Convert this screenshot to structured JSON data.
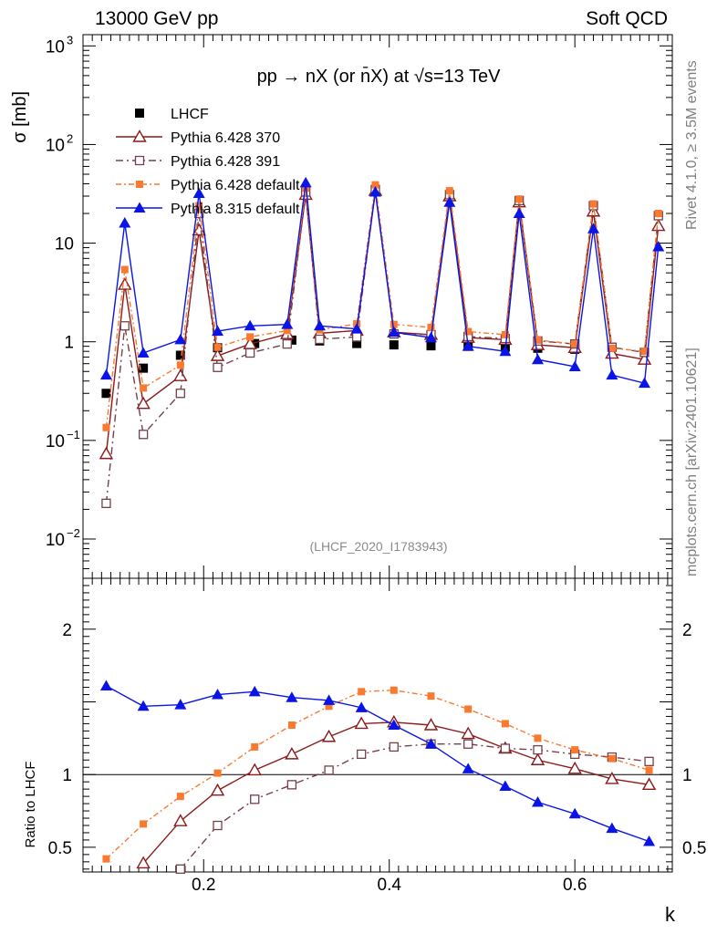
{
  "header": {
    "left": "13000 GeV pp",
    "right": "Soft QCD"
  },
  "side_labels": {
    "top": "Rivet 4.1.0, ≥ 3.5M events",
    "bottom": "mcplots.cern.ch [arXiv:2401.10621]"
  },
  "chart_data": {
    "type": "line",
    "title": "pp → nX (or n̄X) at √s=13 TeV",
    "analysis_tag": "(LHCF_2020_I1783943)",
    "xlabel": "k",
    "ylabel": "σ [mb]",
    "ratio_ylabel": "Ratio to LHCF",
    "top_yscale": "log",
    "top_ylim": [
      0.004,
      1300
    ],
    "ratio_ylim": [
      0.33,
      2.35
    ],
    "xlim": [
      0.07,
      0.705
    ],
    "x_ticks": [
      {
        "v": 0.2,
        "label": "0.2"
      },
      {
        "v": 0.4,
        "label": "0.4"
      },
      {
        "v": 0.6,
        "label": "0.6"
      }
    ],
    "top_y_ticks": [
      {
        "v": 0.01,
        "base": "10",
        "exp": "−2"
      },
      {
        "v": 0.1,
        "base": "10",
        "exp": "−1"
      },
      {
        "v": 1,
        "base": "1",
        "exp": ""
      },
      {
        "v": 10,
        "base": "10",
        "exp": ""
      },
      {
        "v": 100,
        "base": "10",
        "exp": "2"
      },
      {
        "v": 1000,
        "base": "10",
        "exp": "3"
      }
    ],
    "ratio_y_ticks": [
      {
        "v": 0.5,
        "label": "0.5"
      },
      {
        "v": 1,
        "label": "1"
      },
      {
        "v": 2,
        "label": "2"
      }
    ],
    "legend_position": "top-left",
    "top_series": [
      {
        "name": "LHCF",
        "color": "#000000",
        "marker": "filled-square",
        "line": "none",
        "x": [
          0.095,
          0.135,
          0.175,
          0.215,
          0.255,
          0.295,
          0.325,
          0.365,
          0.405,
          0.445,
          0.485,
          0.525,
          0.56,
          0.6
        ],
        "y": [
          0.3,
          0.54,
          0.73,
          0.87,
          0.96,
          1.04,
          1.02,
          0.96,
          0.93,
          0.91,
          0.9,
          0.88,
          0.86,
          0.84
        ]
      },
      {
        "name": "Pythia 6.428 370",
        "color": "#8b1a1a",
        "marker": "open-triangle",
        "line": "solid",
        "x": [
          0.095,
          0.115,
          0.135,
          0.175,
          0.195,
          0.215,
          0.25,
          0.29,
          0.31,
          0.325,
          0.365,
          0.385,
          0.405,
          0.445,
          0.465,
          0.485,
          0.525,
          0.54,
          0.56,
          0.6,
          0.62,
          0.64,
          0.675,
          0.69
        ],
        "y": [
          0.073,
          3.8,
          0.235,
          0.45,
          13.5,
          0.72,
          0.95,
          1.2,
          31,
          1.22,
          1.3,
          34,
          1.25,
          1.18,
          30,
          1.1,
          1.05,
          26,
          0.93,
          0.87,
          21,
          0.76,
          0.66,
          15
        ]
      },
      {
        "name": "Pythia 6.428 391",
        "color": "#74404a",
        "marker": "open-square",
        "line": "dash-dot",
        "x": [
          0.095,
          0.115,
          0.135,
          0.175,
          0.195,
          0.215,
          0.25,
          0.29,
          0.31,
          0.325,
          0.365,
          0.385,
          0.405,
          0.445,
          0.465,
          0.485,
          0.525,
          0.54,
          0.56,
          0.6,
          0.62,
          0.64,
          0.675,
          0.69
        ],
        "y": [
          0.023,
          1.45,
          0.115,
          0.3,
          20,
          0.55,
          0.77,
          0.95,
          33,
          1.06,
          1.12,
          35,
          1.2,
          1.18,
          31,
          1.13,
          1.08,
          27,
          1.02,
          0.95,
          24,
          0.88,
          0.78,
          19
        ]
      },
      {
        "name": "Pythia 6.428 default",
        "color": "#f97a2e",
        "marker": "filled-small-square",
        "line": "dash-dot-dense",
        "x": [
          0.095,
          0.115,
          0.135,
          0.175,
          0.195,
          0.215,
          0.25,
          0.29,
          0.31,
          0.325,
          0.365,
          0.385,
          0.405,
          0.445,
          0.465,
          0.485,
          0.525,
          0.54,
          0.56,
          0.6,
          0.62,
          0.64,
          0.675,
          0.69
        ],
        "y": [
          0.135,
          5.4,
          0.34,
          0.58,
          24,
          0.88,
          1.12,
          1.3,
          36,
          1.32,
          1.52,
          39,
          1.5,
          1.4,
          34,
          1.27,
          1.18,
          28,
          1.04,
          0.95,
          25,
          0.86,
          0.8,
          20
        ]
      },
      {
        "name": "Pythia 8.315 default",
        "color": "#0a14e6",
        "marker": "filled-triangle",
        "line": "solid",
        "x": [
          0.095,
          0.115,
          0.135,
          0.175,
          0.195,
          0.215,
          0.25,
          0.29,
          0.31,
          0.325,
          0.365,
          0.385,
          0.405,
          0.445,
          0.465,
          0.485,
          0.525,
          0.54,
          0.56,
          0.6,
          0.62,
          0.64,
          0.675,
          0.69
        ],
        "y": [
          0.46,
          16,
          0.77,
          1.05,
          32,
          1.28,
          1.45,
          1.5,
          41,
          1.45,
          1.35,
          33,
          1.25,
          1.1,
          26,
          0.9,
          0.8,
          20,
          0.66,
          0.56,
          14,
          0.46,
          0.38,
          9.2
        ]
      }
    ],
    "ratio_series": [
      {
        "name": "Pythia 6.428 370",
        "x": [
          0.135,
          0.175,
          0.215,
          0.255,
          0.295,
          0.335,
          0.37,
          0.405,
          0.445,
          0.485,
          0.525,
          0.56,
          0.6,
          0.64,
          0.68
        ],
        "y": [
          0.39,
          0.68,
          0.89,
          1.03,
          1.14,
          1.26,
          1.35,
          1.36,
          1.34,
          1.28,
          1.18,
          1.1,
          1.04,
          0.97,
          0.93
        ]
      },
      {
        "name": "Pythia 6.428 391",
        "x": [
          0.175,
          0.215,
          0.255,
          0.295,
          0.335,
          0.37,
          0.405,
          0.445,
          0.485,
          0.525,
          0.56,
          0.6,
          0.64,
          0.68
        ],
        "y": [
          0.35,
          0.65,
          0.83,
          0.93,
          1.03,
          1.14,
          1.19,
          1.21,
          1.21,
          1.18,
          1.17,
          1.14,
          1.12,
          1.09
        ]
      },
      {
        "name": "Pythia 6.428 default",
        "x": [
          0.095,
          0.135,
          0.175,
          0.215,
          0.255,
          0.295,
          0.335,
          0.37,
          0.405,
          0.445,
          0.485,
          0.525,
          0.56,
          0.6,
          0.64,
          0.68
        ],
        "y": [
          0.42,
          0.66,
          0.85,
          1.01,
          1.19,
          1.34,
          1.47,
          1.57,
          1.58,
          1.54,
          1.45,
          1.35,
          1.25,
          1.17,
          1.11,
          1.03
        ]
      },
      {
        "name": "Pythia 8.315 default",
        "x": [
          0.095,
          0.135,
          0.175,
          0.215,
          0.255,
          0.295,
          0.335,
          0.37,
          0.405,
          0.445,
          0.485,
          0.525,
          0.56,
          0.6,
          0.64,
          0.68
        ],
        "y": [
          1.61,
          1.47,
          1.48,
          1.55,
          1.57,
          1.53,
          1.51,
          1.46,
          1.34,
          1.21,
          1.04,
          0.92,
          0.81,
          0.73,
          0.63,
          0.54
        ]
      }
    ]
  }
}
